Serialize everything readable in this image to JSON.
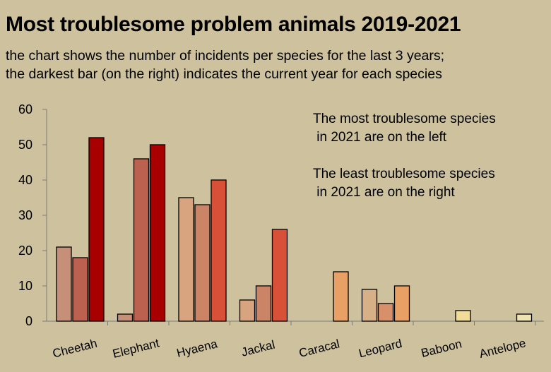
{
  "chart_data": {
    "type": "bar",
    "title": "Most troublesome problem animals 2019-2021",
    "subtitle": [
      "the chart shows the number of incidents per species for the last 3 years;",
      "the darkest bar (on the right) indicates the current year for each species"
    ],
    "annotations": [
      [
        "The most troublesome species",
        " in 2021 are on the left"
      ],
      [
        "The least troublesome species",
        " in 2021 are on the right"
      ]
    ],
    "categories": [
      "Cheetah",
      "Elephant",
      "Hyaena",
      "Jackal",
      "Caracal",
      "Leopard",
      "Baboon",
      "Antelope"
    ],
    "series": [
      {
        "values": [
          21,
          2,
          35,
          6,
          null,
          9,
          null,
          null
        ]
      },
      {
        "values": [
          18,
          46,
          33,
          10,
          null,
          5,
          null,
          null
        ]
      },
      {
        "values": [
          52,
          50,
          40,
          26,
          14,
          10,
          3,
          2
        ]
      }
    ],
    "yticks": [
      0,
      10,
      20,
      30,
      40,
      50,
      60
    ],
    "ylim": [
      0,
      60
    ],
    "xlabel": "",
    "ylabel": "",
    "grid": false,
    "legend": "none",
    "colors": {
      "background": "#cdc19e",
      "cheetah": [
        "#c69078",
        "#bc6050",
        "#a80000"
      ],
      "elephant": [
        "#c69078",
        "#bc6050",
        "#a80000"
      ],
      "hyaena": [
        "#d8a480",
        "#cc8466",
        "#d85038"
      ],
      "jackal": [
        "#d8a480",
        "#cc8466",
        "#d85038"
      ],
      "caracal": [
        "#e8a064",
        "#e8a064",
        "#e8a064"
      ],
      "leopard": [
        "#d8b088",
        "#d8906a",
        "#e8a064"
      ],
      "baboon": [
        "#f0dc98",
        "#f0dc98",
        "#f0dc98"
      ],
      "antelope": [
        "#ede3b5",
        "#ede3b5",
        "#ede3b5"
      ]
    }
  }
}
